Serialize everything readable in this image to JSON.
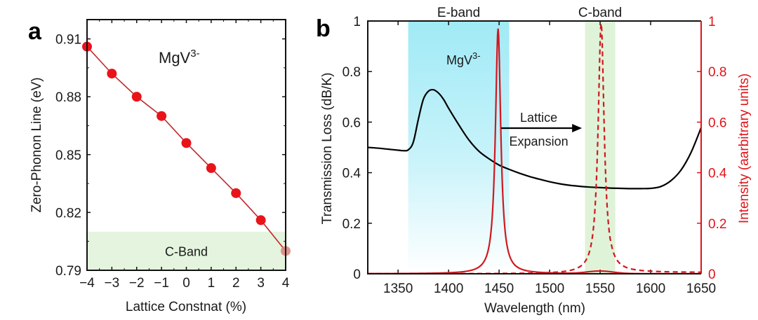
{
  "chart_data": [
    {
      "panel": "a",
      "type": "line",
      "title": "",
      "xlabel": "Lattice Constnat (%)",
      "ylabel": "Zero-Phonon Line (eV)",
      "xlim": [
        -4,
        4
      ],
      "ylim": [
        0.79,
        0.92
      ],
      "xticks": [
        -4,
        -3,
        -2,
        -1,
        0,
        1,
        2,
        3,
        4
      ],
      "xtick_labels": [
        "−4",
        "−3",
        "−2",
        "−1",
        "0",
        "1",
        "2",
        "3",
        "4"
      ],
      "yticks": [
        0.79,
        0.82,
        0.85,
        0.88,
        0.91
      ],
      "ytick_labels": [
        "0.79",
        "0.82",
        "0.85",
        "0.88",
        "0.91"
      ],
      "grid": false,
      "annotation": {
        "text": "MgV",
        "superscript": "3-"
      },
      "shaded_region": {
        "label": "C-Band",
        "y_range": [
          0.79,
          0.81
        ],
        "color": "#e4f4de"
      },
      "series": [
        {
          "name": "MgV3-",
          "color": "#e8141a",
          "line_color": "#c0282a",
          "x": [
            -4,
            -3,
            -2,
            -1,
            0,
            1,
            2,
            3,
            4
          ],
          "y": [
            0.906,
            0.892,
            0.88,
            0.87,
            0.856,
            0.843,
            0.83,
            0.816,
            0.8
          ]
        }
      ]
    },
    {
      "panel": "b",
      "type": "line",
      "title": "",
      "xlabel": "Wavelength (nm)",
      "ylabel": "Transmission Loss (dB/K)",
      "ylabel_right": "Intensity (aarbitrary units)",
      "xlim": [
        1320,
        1650
      ],
      "ylim": [
        0,
        1
      ],
      "ylim_right": [
        0,
        1
      ],
      "xticks": [
        1350,
        1400,
        1450,
        1500,
        1550,
        1600,
        1650
      ],
      "xtick_labels": [
        "1350",
        "1400",
        "1450",
        "1500",
        "1550",
        "1600",
        "1650"
      ],
      "yticks": [
        0,
        0.2,
        0.4,
        0.6,
        0.8,
        1
      ],
      "ytick_labels": [
        "0",
        "0.2",
        "0.4",
        "0.6",
        "0.8",
        "1"
      ],
      "yticks_right": [
        0,
        0.2,
        0.4,
        0.6,
        0.8,
        1
      ],
      "ytick_labels_right": [
        "0",
        "0.2",
        "0.4",
        "0.6",
        "0.8",
        "1"
      ],
      "grid": false,
      "bands": [
        {
          "label": "E-band",
          "x_range": [
            1360,
            1460
          ],
          "color": "#a0eaf6"
        },
        {
          "label": "C-band",
          "x_range": [
            1535,
            1565
          ],
          "color": "#dff3d8"
        }
      ],
      "annotations": [
        {
          "text": "MgV",
          "superscript": "3-"
        },
        {
          "text_line1": "Lattice",
          "text_line2": "Expansion",
          "arrow_from": 1452,
          "arrow_to": 1532
        }
      ],
      "series": [
        {
          "name": "Transmission Loss",
          "axis": "left",
          "style": "solid",
          "color": "#000000",
          "x": [
            1320,
            1330,
            1340,
            1350,
            1355,
            1360,
            1365,
            1370,
            1375,
            1380,
            1385,
            1390,
            1395,
            1400,
            1410,
            1420,
            1430,
            1440,
            1450,
            1460,
            1470,
            1480,
            1490,
            1500,
            1510,
            1520,
            1530,
            1540,
            1550,
            1560,
            1570,
            1580,
            1590,
            1600,
            1610,
            1620,
            1630,
            1640,
            1650
          ],
          "y": [
            0.5,
            0.497,
            0.493,
            0.489,
            0.487,
            0.49,
            0.52,
            0.61,
            0.69,
            0.722,
            0.728,
            0.715,
            0.69,
            0.655,
            0.59,
            0.53,
            0.485,
            0.455,
            0.43,
            0.413,
            0.398,
            0.385,
            0.374,
            0.364,
            0.356,
            0.35,
            0.346,
            0.343,
            0.341,
            0.339,
            0.338,
            0.337,
            0.337,
            0.338,
            0.345,
            0.368,
            0.41,
            0.48,
            0.578
          ]
        },
        {
          "name": "MgV3- emission (E-band)",
          "axis": "right",
          "style": "solid",
          "color": "#d01820",
          "peak_center": 1449,
          "peak_height": 0.97,
          "peak_hwhm": 3.2,
          "secondary_bump": {
            "center": 1550,
            "height": 0.01
          }
        },
        {
          "name": "Emission after lattice expansion (C-band)",
          "axis": "right",
          "style": "dashed",
          "color": "#d01820",
          "peak_center": 1551,
          "peak_height": 0.99,
          "peak_hwhm": 3.6,
          "baseline": 0.005
        }
      ]
    }
  ],
  "panel_labels": {
    "a": "a",
    "b": "b"
  }
}
